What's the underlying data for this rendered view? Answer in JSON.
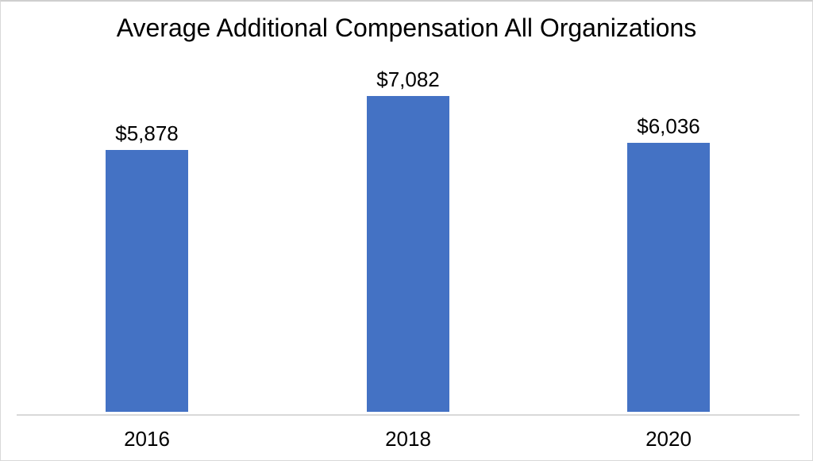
{
  "chart_data": {
    "type": "bar",
    "title": "Average Additional Compensation All Organizations",
    "categories": [
      "2016",
      "2018",
      "2020"
    ],
    "values": [
      5878,
      7082,
      6036
    ],
    "data_labels": [
      "$5,878",
      "$7,082",
      "$6,036"
    ],
    "xlabel": "",
    "ylabel": "",
    "ylim": [
      0,
      7500
    ],
    "grid": false,
    "legend": false,
    "bar_color": "#4472C4",
    "axis_line_color": "#D9D9D9",
    "text_color": "#000000",
    "background_color": "#FFFFFF"
  }
}
